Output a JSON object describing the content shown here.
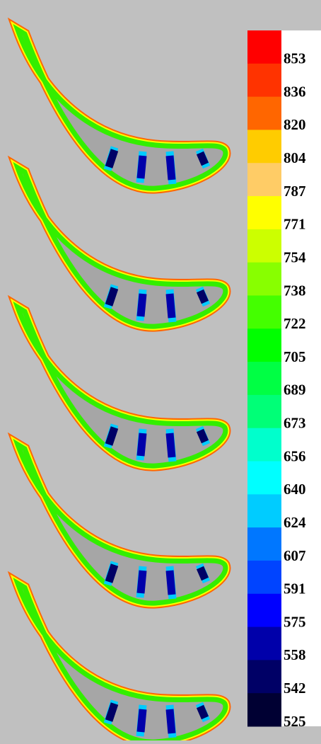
{
  "legend": {
    "labels": [
      853,
      836,
      820,
      804,
      787,
      771,
      754,
      738,
      722,
      705,
      689,
      673,
      656,
      640,
      624,
      607,
      591,
      575,
      558,
      542,
      525
    ],
    "colors": [
      "#ff0000",
      "#ff3300",
      "#ff6600",
      "#ffcc00",
      "#ffcc66",
      "#ffff00",
      "#ccff00",
      "#88ff00",
      "#44ff00",
      "#00ff00",
      "#00ff44",
      "#00ff77",
      "#00ffcc",
      "#00ffff",
      "#00ccff",
      "#0077ff",
      "#0044ff",
      "#0000ff",
      "#0000aa",
      "#000066",
      "#000033"
    ]
  }
}
